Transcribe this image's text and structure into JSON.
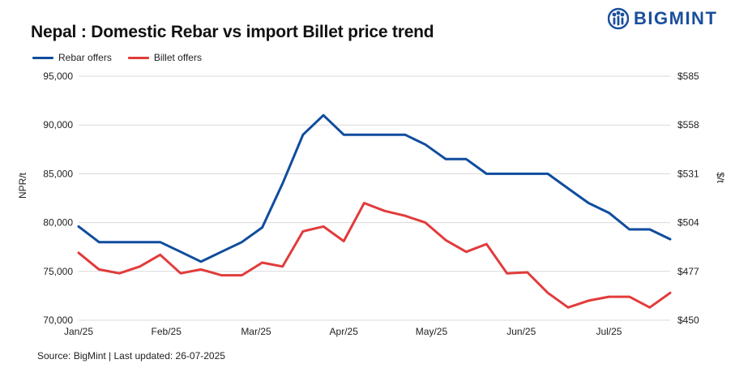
{
  "header": {
    "title": "Nepal : Domestic Rebar vs import Billet price trend",
    "brand": "BIGMINT"
  },
  "footer": {
    "source": "Source: BigMint | Last updated: 26-07-2025"
  },
  "colors": {
    "rebar": "#0f4c9e",
    "billet": "#e23b3b",
    "grid": "#d9d9d9",
    "brand": "#1a4f9c"
  },
  "chart_data": {
    "type": "line",
    "title": "Nepal : Domestic Rebar vs import Billet price trend",
    "ylabel": "NPR/t",
    "y2label": "$/t",
    "ylim": [
      70000,
      95000
    ],
    "y2lim": [
      450,
      585
    ],
    "yticks": [
      "70,000",
      "75,000",
      "80,000",
      "85,000",
      "90,000",
      "95,000"
    ],
    "y2ticks": [
      "$450",
      "$477",
      "$504",
      "$531",
      "$558",
      "$585"
    ],
    "xticks": [
      "Jan/25",
      "Feb/25",
      "Mar/25",
      "Apr/25",
      "May/25",
      "Jun/25",
      "Jul/25"
    ],
    "xtick_index": [
      0,
      4.3,
      8.7,
      13.0,
      17.3,
      21.7,
      26.0
    ],
    "legend_position": "top-left",
    "series": [
      {
        "name": "Rebar offers",
        "color": "#0f4c9e",
        "values": [
          79600,
          78000,
          78000,
          78000,
          78000,
          77000,
          76000,
          77000,
          78000,
          79500,
          84000,
          89000,
          91000,
          89000,
          89000,
          89000,
          89000,
          88000,
          86500,
          86500,
          85000,
          85000,
          85000,
          85000,
          83500,
          82000,
          81000,
          79300,
          79300,
          78300
        ]
      },
      {
        "name": "Billet offers",
        "color": "#e23b3b",
        "values": [
          76900,
          75200,
          74800,
          75500,
          76700,
          74800,
          75200,
          74600,
          74600,
          75900,
          75500,
          79100,
          79600,
          78100,
          82000,
          81200,
          80700,
          80000,
          78200,
          77000,
          77800,
          74800,
          74900,
          72800,
          71300,
          72000,
          72400,
          72400,
          71300,
          72800
        ]
      }
    ]
  }
}
